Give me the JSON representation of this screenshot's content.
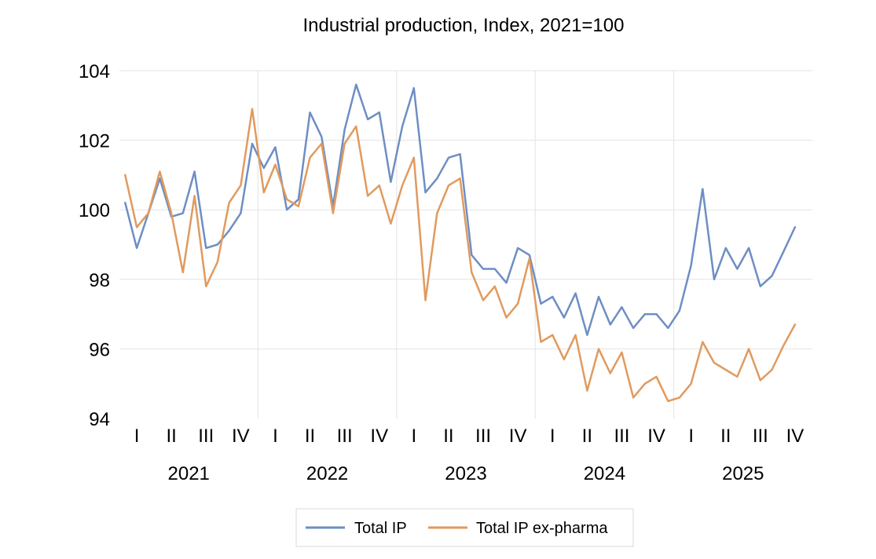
{
  "chart_data": {
    "type": "line",
    "title": "Industrial production, Index, 2021=100",
    "xlabel": "",
    "ylabel": "",
    "ylim": [
      94,
      104
    ],
    "yticks": [
      94,
      96,
      98,
      100,
      102,
      104
    ],
    "grid": true,
    "legend_position": "bottom",
    "years": [
      "2021",
      "2022",
      "2023",
      "2024",
      "2025"
    ],
    "quarters": [
      "I",
      "II",
      "III",
      "IV"
    ],
    "months_per_year": 12,
    "series": [
      {
        "name": "Total IP",
        "color": "#6E8EC4",
        "values": [
          100.2,
          98.9,
          99.9,
          100.9,
          99.8,
          99.9,
          101.1,
          98.9,
          99.0,
          99.4,
          99.9,
          101.9,
          101.2,
          101.8,
          100.0,
          100.3,
          102.8,
          102.1,
          100.1,
          102.3,
          103.6,
          102.6,
          102.8,
          100.8,
          102.4,
          103.5,
          100.5,
          100.9,
          101.5,
          101.6,
          98.7,
          98.3,
          98.3,
          97.9,
          98.9,
          98.7,
          97.3,
          97.5,
          96.9,
          97.6,
          96.4,
          97.5,
          96.7,
          97.2,
          96.6,
          97.0,
          97.0,
          96.6,
          97.1,
          98.4,
          100.6,
          98.0,
          98.9,
          98.3,
          98.9,
          97.8,
          98.1,
          98.8,
          99.5
        ]
      },
      {
        "name": "Total IP ex-pharma",
        "color": "#E19A5E",
        "values": [
          101.0,
          99.5,
          99.9,
          101.1,
          99.9,
          98.2,
          100.4,
          97.8,
          98.5,
          100.2,
          100.7,
          102.9,
          100.5,
          101.3,
          100.3,
          100.1,
          101.5,
          101.9,
          99.9,
          101.9,
          102.4,
          100.4,
          100.7,
          99.6,
          100.7,
          101.5,
          97.4,
          99.9,
          100.7,
          100.9,
          98.2,
          97.4,
          97.8,
          96.9,
          97.3,
          98.6,
          96.2,
          96.4,
          95.7,
          96.4,
          94.8,
          96.0,
          95.3,
          95.9,
          94.6,
          95.0,
          95.2,
          94.5,
          94.6,
          95.0,
          96.2,
          95.6,
          95.4,
          95.2,
          96.0,
          95.1,
          95.4,
          96.1,
          96.7
        ]
      }
    ]
  }
}
